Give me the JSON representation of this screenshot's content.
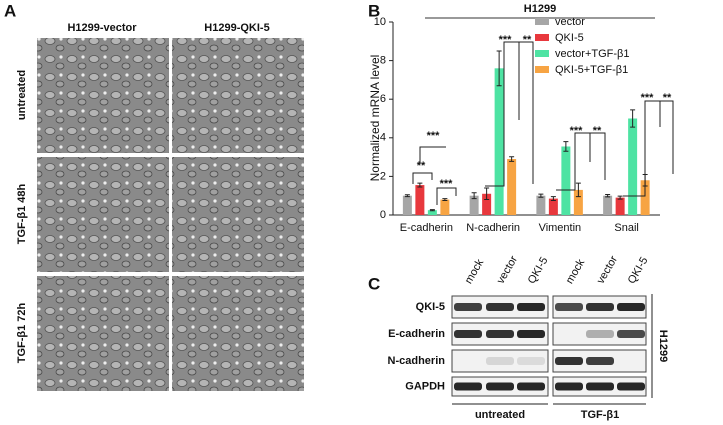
{
  "panel_a": {
    "label": "A",
    "columns": [
      "H1299-vector",
      "H1299-QKI-5"
    ],
    "rows": [
      "untreated",
      "TGF-β1 48h",
      "TGF-β1 72h"
    ]
  },
  "chart_data": {
    "type": "bar",
    "label": "B",
    "title": "H1299",
    "ylabel": "Normalized  mRNA level",
    "categories": [
      "E-cadherin",
      "N-cadherin",
      "Vimentin",
      "Snail"
    ],
    "series": [
      {
        "name": "vector",
        "color": "#a6a6a6",
        "values": [
          1,
          1,
          1,
          1
        ],
        "errors": [
          0.05,
          0.15,
          0.08,
          0.06
        ]
      },
      {
        "name": "QKI-5",
        "color": "#e8383d",
        "values": [
          1.55,
          1.1,
          0.85,
          0.9
        ],
        "errors": [
          0.1,
          0.3,
          0.1,
          0.08
        ]
      },
      {
        "name": "vector+TGF-β1",
        "color": "#4ee3a3",
        "values": [
          0.25,
          7.6,
          3.55,
          5.0
        ],
        "errors": [
          0.03,
          0.9,
          0.25,
          0.45
        ]
      },
      {
        "name": "QKI-5+TGF-β1",
        "color": "#f7a443",
        "values": [
          0.8,
          2.9,
          1.3,
          1.8
        ],
        "errors": [
          0.05,
          0.12,
          0.35,
          0.3
        ]
      }
    ],
    "ylim": [
      0,
      10
    ],
    "yticks": [
      0,
      2,
      4,
      6,
      8,
      10
    ],
    "legend": "upper right",
    "annotations": [
      "**",
      "***",
      "***",
      "***",
      "**",
      "***",
      "**",
      "***",
      "**"
    ]
  },
  "panel_c": {
    "label": "C",
    "lanes": [
      "mock",
      "vector",
      "QKI-5",
      "mock",
      "vector",
      "QKI-5"
    ],
    "proteins": [
      "QKI-5",
      "E-cadherin",
      "N-cadherin",
      "GAPDH"
    ],
    "groups": [
      "untreated",
      "TGF-β1"
    ],
    "side_label": "H1299"
  }
}
